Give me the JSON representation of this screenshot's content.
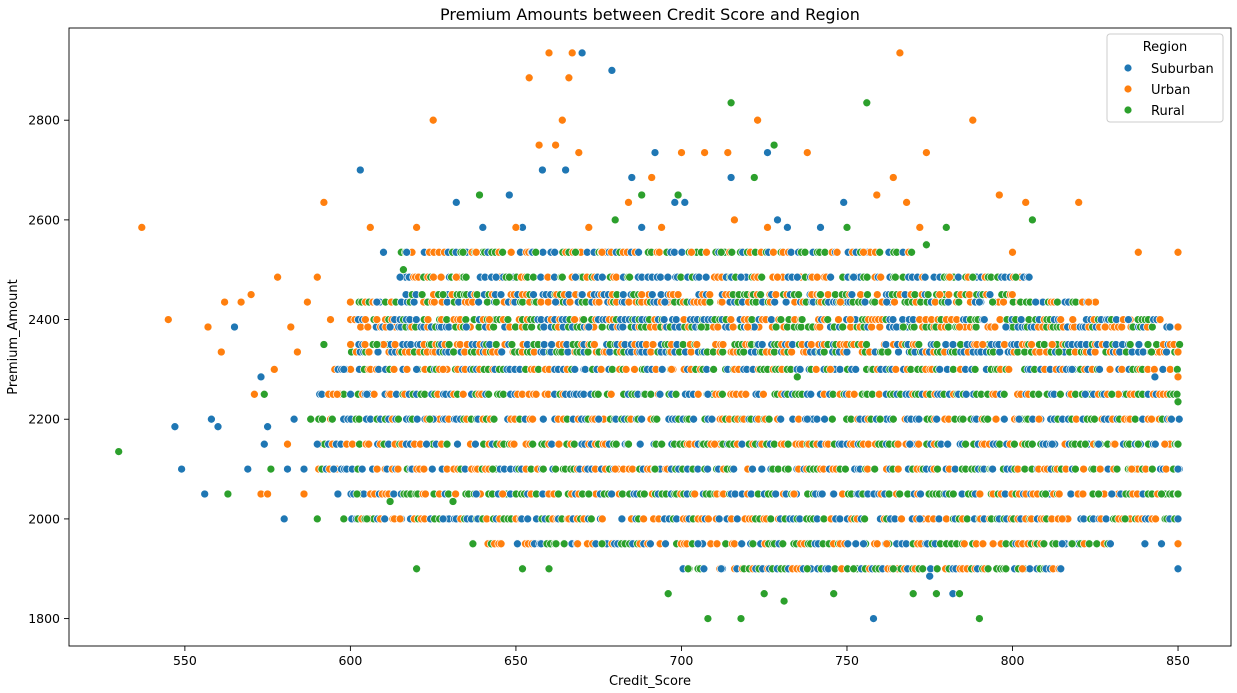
{
  "chart_data": {
    "type": "scatter",
    "title": "Premium Amounts between Credit Score and Region",
    "xlabel": "Credit_Score",
    "ylabel": "Premium_Amount",
    "xlim": [
      515,
      866
    ],
    "ylim": [
      1745,
      2985
    ],
    "x_ticks": [
      550,
      600,
      650,
      700,
      750,
      800,
      850
    ],
    "y_ticks": [
      1800,
      2000,
      2200,
      2400,
      2600,
      2800
    ],
    "grid": false,
    "legend": {
      "title": "Region",
      "placement": "top-right"
    },
    "marker": "circle",
    "series": [
      {
        "name": "Suburban",
        "color": "#1f77b4",
        "points": [
          [
            547,
            2185
          ],
          [
            549,
            2100
          ],
          [
            556,
            2050
          ],
          [
            558,
            2200
          ],
          [
            560,
            2185
          ],
          [
            565,
            2385
          ],
          [
            569,
            2100
          ],
          [
            573,
            2285
          ],
          [
            574,
            2150
          ],
          [
            575,
            2185
          ],
          [
            580,
            2000
          ],
          [
            581,
            2100
          ],
          [
            583,
            2200
          ],
          [
            586,
            2100
          ],
          [
            590,
            2150
          ],
          [
            595,
            2100
          ],
          [
            598,
            2300
          ],
          [
            601,
            2050
          ],
          [
            603,
            2700
          ],
          [
            605,
            2250
          ],
          [
            608,
            2435
          ],
          [
            610,
            2535
          ],
          [
            612,
            2385
          ],
          [
            615,
            2485
          ],
          [
            617,
            2535
          ],
          [
            620,
            2300
          ],
          [
            623,
            2150
          ],
          [
            625,
            2200
          ],
          [
            628,
            2000
          ],
          [
            632,
            2635
          ],
          [
            635,
            2385
          ],
          [
            638,
            2050
          ],
          [
            640,
            2585
          ],
          [
            644,
            2485
          ],
          [
            648,
            2650
          ],
          [
            652,
            2585
          ],
          [
            655,
            2535
          ],
          [
            658,
            2700
          ],
          [
            662,
            2435
          ],
          [
            665,
            2700
          ],
          [
            668,
            2485
          ],
          [
            670,
            2935
          ],
          [
            672,
            2385
          ],
          [
            675,
            2200
          ],
          [
            679,
            2900
          ],
          [
            682,
            2000
          ],
          [
            685,
            2685
          ],
          [
            688,
            2585
          ],
          [
            692,
            2735
          ],
          [
            695,
            2435
          ],
          [
            698,
            2635
          ],
          [
            701,
            2635
          ],
          [
            705,
            1950
          ],
          [
            708,
            2250
          ],
          [
            712,
            1900
          ],
          [
            715,
            2685
          ],
          [
            718,
            2485
          ],
          [
            722,
            2385
          ],
          [
            726,
            2735
          ],
          [
            729,
            2600
          ],
          [
            732,
            2585
          ],
          [
            735,
            2485
          ],
          [
            738,
            2200
          ],
          [
            742,
            2585
          ],
          [
            746,
            2050
          ],
          [
            749,
            2635
          ],
          [
            752,
            2485
          ],
          [
            755,
            1950
          ],
          [
            758,
            1800
          ],
          [
            762,
            2435
          ],
          [
            765,
            2385
          ],
          [
            769,
            2150
          ],
          [
            772,
            2000
          ],
          [
            775,
            1885
          ],
          [
            778,
            2300
          ],
          [
            782,
            1850
          ],
          [
            786,
            2250
          ],
          [
            790,
            2435
          ],
          [
            794,
            2100
          ],
          [
            798,
            2385
          ],
          [
            802,
            2200
          ],
          [
            805,
            2485
          ],
          [
            807,
            2435
          ],
          [
            812,
            2150
          ],
          [
            815,
            1950
          ],
          [
            818,
            2300
          ],
          [
            822,
            2250
          ],
          [
            826,
            2150
          ],
          [
            830,
            2050
          ],
          [
            835,
            2400
          ],
          [
            840,
            1950
          ],
          [
            843,
            2285
          ],
          [
            845,
            1950
          ],
          [
            848,
            2200
          ],
          [
            850,
            1900
          ],
          [
            850,
            2000
          ],
          [
            850,
            2100
          ]
        ]
      },
      {
        "name": "Urban",
        "color": "#ff7f0e",
        "points": [
          [
            537,
            2585
          ],
          [
            545,
            2400
          ],
          [
            557,
            2385
          ],
          [
            561,
            2335
          ],
          [
            562,
            2435
          ],
          [
            567,
            2435
          ],
          [
            570,
            2450
          ],
          [
            571,
            2250
          ],
          [
            573,
            2050
          ],
          [
            575,
            2050
          ],
          [
            577,
            2300
          ],
          [
            578,
            2485
          ],
          [
            581,
            2150
          ],
          [
            582,
            2385
          ],
          [
            584,
            2335
          ],
          [
            586,
            2050
          ],
          [
            587,
            2435
          ],
          [
            590,
            2485
          ],
          [
            592,
            2635
          ],
          [
            594,
            2400
          ],
          [
            596,
            2250
          ],
          [
            600,
            2435
          ],
          [
            606,
            2585
          ],
          [
            610,
            2350
          ],
          [
            615,
            2000
          ],
          [
            620,
            2585
          ],
          [
            625,
            2800
          ],
          [
            628,
            2300
          ],
          [
            632,
            2485
          ],
          [
            638,
            2535
          ],
          [
            642,
            2400
          ],
          [
            646,
            2050
          ],
          [
            650,
            2585
          ],
          [
            654,
            2885
          ],
          [
            657,
            2750
          ],
          [
            660,
            2935
          ],
          [
            662,
            2750
          ],
          [
            664,
            2800
          ],
          [
            666,
            2885
          ],
          [
            667,
            2935
          ],
          [
            669,
            2735
          ],
          [
            672,
            2585
          ],
          [
            676,
            2535
          ],
          [
            680,
            2100
          ],
          [
            684,
            2635
          ],
          [
            688,
            2450
          ],
          [
            691,
            2685
          ],
          [
            694,
            2585
          ],
          [
            697,
            2300
          ],
          [
            700,
            2735
          ],
          [
            703,
            2535
          ],
          [
            707,
            2735
          ],
          [
            710,
            2150
          ],
          [
            714,
            2735
          ],
          [
            716,
            2600
          ],
          [
            720,
            2385
          ],
          [
            723,
            2800
          ],
          [
            726,
            2585
          ],
          [
            729,
            2485
          ],
          [
            734,
            2050
          ],
          [
            738,
            2735
          ],
          [
            741,
            2485
          ],
          [
            745,
            2300
          ],
          [
            748,
            2435
          ],
          [
            751,
            2400
          ],
          [
            755,
            2535
          ],
          [
            759,
            2650
          ],
          [
            762,
            1950
          ],
          [
            764,
            2685
          ],
          [
            766,
            2935
          ],
          [
            768,
            2635
          ],
          [
            772,
            2585
          ],
          [
            774,
            2735
          ],
          [
            778,
            2450
          ],
          [
            781,
            2485
          ],
          [
            784,
            2385
          ],
          [
            788,
            2800
          ],
          [
            791,
            2350
          ],
          [
            795,
            2200
          ],
          [
            796,
            2650
          ],
          [
            800,
            2535
          ],
          [
            803,
            1900
          ],
          [
            804,
            2635
          ],
          [
            808,
            2200
          ],
          [
            812,
            2350
          ],
          [
            815,
            2000
          ],
          [
            820,
            2635
          ],
          [
            823,
            2435
          ],
          [
            828,
            2385
          ],
          [
            832,
            2250
          ],
          [
            836,
            2100
          ],
          [
            838,
            2535
          ],
          [
            842,
            2200
          ],
          [
            846,
            2150
          ],
          [
            850,
            2535
          ],
          [
            850,
            2385
          ],
          [
            850,
            2335
          ],
          [
            850,
            2285
          ],
          [
            850,
            1950
          ]
        ]
      },
      {
        "name": "Rural",
        "color": "#2ca02c",
        "points": [
          [
            530,
            2135
          ],
          [
            563,
            2050
          ],
          [
            574,
            2250
          ],
          [
            576,
            2100
          ],
          [
            588,
            2200
          ],
          [
            590,
            2000
          ],
          [
            592,
            2350
          ],
          [
            598,
            2000
          ],
          [
            602,
            2050
          ],
          [
            605,
            2000
          ],
          [
            608,
            2350
          ],
          [
            612,
            2035
          ],
          [
            616,
            2500
          ],
          [
            620,
            1900
          ],
          [
            624,
            2200
          ],
          [
            628,
            2450
          ],
          [
            631,
            2035
          ],
          [
            634,
            2535
          ],
          [
            637,
            1950
          ],
          [
            639,
            2650
          ],
          [
            643,
            2100
          ],
          [
            648,
            2485
          ],
          [
            652,
            1900
          ],
          [
            656,
            2535
          ],
          [
            660,
            1900
          ],
          [
            664,
            2485
          ],
          [
            668,
            2535
          ],
          [
            672,
            2050
          ],
          [
            676,
            1950
          ],
          [
            680,
            2600
          ],
          [
            684,
            2150
          ],
          [
            688,
            2650
          ],
          [
            692,
            2100
          ],
          [
            696,
            1850
          ],
          [
            699,
            2650
          ],
          [
            702,
            1900
          ],
          [
            706,
            2385
          ],
          [
            708,
            1800
          ],
          [
            712,
            2535
          ],
          [
            715,
            2835
          ],
          [
            718,
            1800
          ],
          [
            722,
            2685
          ],
          [
            725,
            1850
          ],
          [
            728,
            2750
          ],
          [
            731,
            1835
          ],
          [
            735,
            2285
          ],
          [
            738,
            1900
          ],
          [
            742,
            2450
          ],
          [
            746,
            1850
          ],
          [
            750,
            2585
          ],
          [
            752,
            1900
          ],
          [
            756,
            2835
          ],
          [
            760,
            2200
          ],
          [
            764,
            1900
          ],
          [
            767,
            2385
          ],
          [
            770,
            1850
          ],
          [
            774,
            2550
          ],
          [
            777,
            1850
          ],
          [
            780,
            2585
          ],
          [
            784,
            1850
          ],
          [
            788,
            2485
          ],
          [
            790,
            1800
          ],
          [
            794,
            2435
          ],
          [
            798,
            1900
          ],
          [
            801,
            2485
          ],
          [
            806,
            2600
          ],
          [
            810,
            2050
          ],
          [
            814,
            2335
          ],
          [
            818,
            1950
          ],
          [
            822,
            2150
          ],
          [
            826,
            2050
          ],
          [
            830,
            2250
          ],
          [
            834,
            2000
          ],
          [
            838,
            2150
          ],
          [
            842,
            2335
          ],
          [
            845,
            2050
          ],
          [
            850,
            2235
          ],
          [
            850,
            2150
          ],
          [
            850,
            2050
          ]
        ]
      }
    ]
  },
  "bands": {
    "y_levels": [
      1900,
      1950,
      2000,
      2050,
      2100,
      2150,
      2200,
      2250,
      2300,
      2335,
      2350,
      2385,
      2400,
      2435,
      2450,
      2485,
      2535
    ],
    "x_range": [
      [
        700,
        815
      ],
      [
        640,
        830
      ],
      [
        600,
        850
      ],
      [
        595,
        850
      ],
      [
        590,
        850
      ],
      [
        590,
        850
      ],
      [
        590,
        850
      ],
      [
        590,
        850
      ],
      [
        595,
        850
      ],
      [
        600,
        850
      ],
      [
        600,
        850
      ],
      [
        603,
        848
      ],
      [
        600,
        845
      ],
      [
        600,
        825
      ],
      [
        615,
        800
      ],
      [
        615,
        805
      ],
      [
        615,
        770
      ]
    ]
  }
}
